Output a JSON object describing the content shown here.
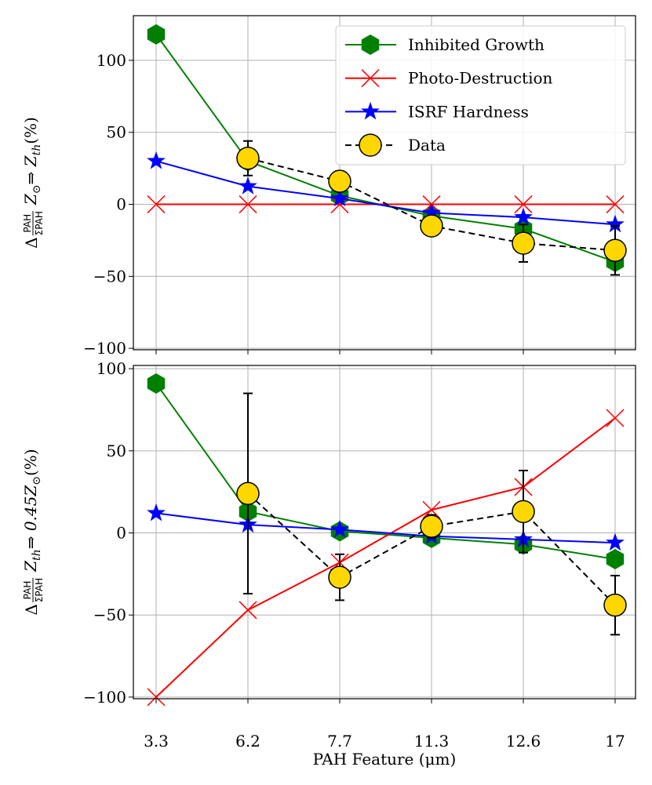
{
  "chart_data": [
    {
      "type": "line",
      "ylabel": {
        "symbol": "Δ",
        "sup": "PAH",
        "sub": "ΣPAH",
        "body": [
          {
            "text": "Z"
          },
          {
            "text": "⊙",
            "sub": true
          },
          {
            "text": " ⇒ Z"
          },
          {
            "text": "th",
            "sub": true
          },
          {
            "text": " (%)"
          }
        ]
      },
      "ylim": [
        -101,
        131
      ],
      "yticks": [
        {
          "value": -100,
          "label": "−100"
        },
        {
          "value": -50,
          "label": "−50"
        },
        0,
        50,
        100
      ],
      "grid": true,
      "legend": "upper right",
      "series": [
        {
          "name": "Inhibited Growth",
          "color": "#008000",
          "marker": "hexagon",
          "values": [
            118,
            30,
            6,
            -8,
            -17,
            -40
          ]
        },
        {
          "name": "Photo-Destruction",
          "color": "#ff0000",
          "marker": "x",
          "values": [
            0,
            0,
            0,
            0,
            0,
            0
          ]
        },
        {
          "name": "ISRF Hardness",
          "color": "#0000ff",
          "marker": "star",
          "values": [
            30,
            12.5,
            4,
            -6,
            -9,
            -14
          ]
        },
        {
          "name": "Data",
          "color": "#000000",
          "marker": "circle",
          "marker_color": "#ffd700",
          "linestyle": "dashed",
          "values": [
            null,
            32,
            16,
            -15,
            -27,
            -32
          ],
          "errors": [
            null,
            12,
            7,
            3,
            13,
            17
          ]
        }
      ]
    },
    {
      "type": "line",
      "ylabel": {
        "symbol": "Δ",
        "sup": "PAH",
        "sub": "ΣPAH",
        "body": [
          {
            "text": "Z"
          },
          {
            "text": "th",
            "sub": true
          },
          {
            "text": " ⇒ 0.45Z"
          },
          {
            "text": "⊙",
            "sub": true
          },
          {
            "text": " (%)"
          }
        ]
      },
      "xlabel": "PAH Feature (μm)",
      "categories": [
        "3.3",
        "6.2",
        "7.7",
        "11.3",
        "12.6",
        "17"
      ],
      "ylim": [
        -101,
        102
      ],
      "yticks": [
        {
          "value": -100,
          "label": "−100"
        },
        {
          "value": -50,
          "label": "−50"
        },
        0,
        50,
        100
      ],
      "grid": true,
      "series": [
        {
          "color": "#008000",
          "marker": "hexagon",
          "values": [
            91,
            13,
            1,
            -3,
            -7,
            -16
          ]
        },
        {
          "color": "#ff0000",
          "marker": "x",
          "values": [
            -100,
            -47,
            -18,
            14,
            28,
            70
          ]
        },
        {
          "color": "#0000ff",
          "marker": "star",
          "values": [
            12,
            5,
            2,
            -2,
            -4,
            -6
          ]
        },
        {
          "color": "#000000",
          "marker": "circle",
          "marker_color": "#ffd700",
          "linestyle": "dashed",
          "values": [
            null,
            24,
            -27,
            4,
            13,
            -44
          ],
          "errors": [
            null,
            61,
            14,
            7,
            25,
            18
          ]
        }
      ]
    }
  ]
}
